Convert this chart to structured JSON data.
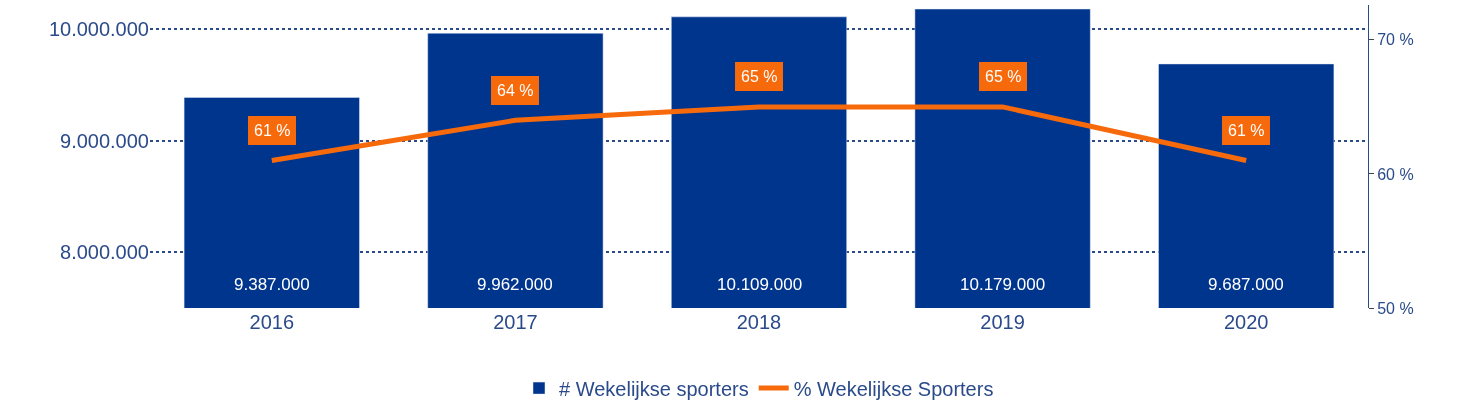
{
  "chart_data": {
    "type": "bar",
    "categories": [
      "2016",
      "2017",
      "2018",
      "2019",
      "2020"
    ],
    "series": [
      {
        "name": "# Wekelijkse sporters",
        "color": "#00358e",
        "values": [
          9387000,
          9962000,
          10109000,
          10179000,
          9687000
        ],
        "value_labels": [
          "9.387.000",
          "9.962.000",
          "10.109.000",
          "10.179.000",
          "9.687.000"
        ]
      },
      {
        "name": "% Wekelijkse Sporters",
        "type": "line",
        "axis": "y2",
        "color": "#f76a0c",
        "values": [
          61,
          64,
          65,
          65,
          61
        ],
        "value_labels": [
          "61 %",
          "64 %",
          "65 %",
          "65 %",
          "61 %"
        ]
      }
    ],
    "ylim": [
      7500000,
      10215000
    ],
    "yticks": [
      {
        "value": 8000000,
        "label": "8.000.000"
      },
      {
        "value": 9000000,
        "label": "9.000.000"
      },
      {
        "value": 10000000,
        "label": "10.000.000"
      }
    ],
    "y2lim": [
      50,
      72.6
    ],
    "y2ticks": [
      {
        "value": 50,
        "label": "50 %"
      },
      {
        "value": 60,
        "label": "60 %"
      },
      {
        "value": 70,
        "label": "70 %"
      }
    ],
    "grid": "y",
    "legend": "bottom",
    "marker": "none",
    "line_style": "solid"
  }
}
